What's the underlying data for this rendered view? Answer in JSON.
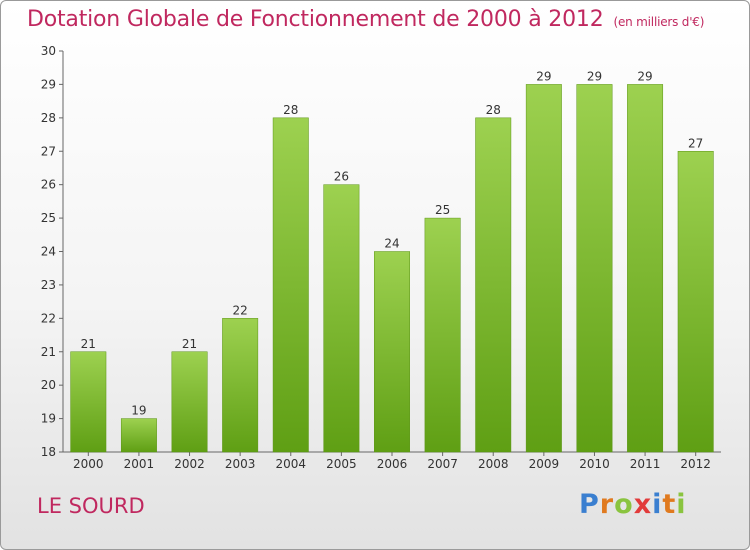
{
  "chart_data": {
    "type": "bar",
    "title": "Dotation Globale de Fonctionnement de 2000 à 2012",
    "subtitle": "(en milliers d'€)",
    "categories": [
      "2000",
      "2001",
      "2002",
      "2003",
      "2004",
      "2005",
      "2006",
      "2007",
      "2008",
      "2009",
      "2010",
      "2011",
      "2012"
    ],
    "values": [
      21,
      19,
      21,
      22,
      28,
      26,
      24,
      25,
      28,
      29,
      29,
      29,
      27
    ],
    "ylim": [
      18,
      30
    ],
    "yticks": [
      18,
      19,
      20,
      21,
      22,
      23,
      24,
      25,
      26,
      27,
      28,
      29,
      30
    ],
    "grid": false,
    "bar_color": "#7fbf2a"
  },
  "footer": {
    "commune": "LE SOURD",
    "logo_letters": [
      "P",
      "r",
      "o",
      "x",
      "i",
      "t",
      "i"
    ],
    "logo_colors": [
      "#3a7fd0",
      "#e07a1f",
      "#8ac43f",
      "#e23b3b",
      "#3a7fd0",
      "#e07a1f",
      "#8ac43f"
    ]
  }
}
